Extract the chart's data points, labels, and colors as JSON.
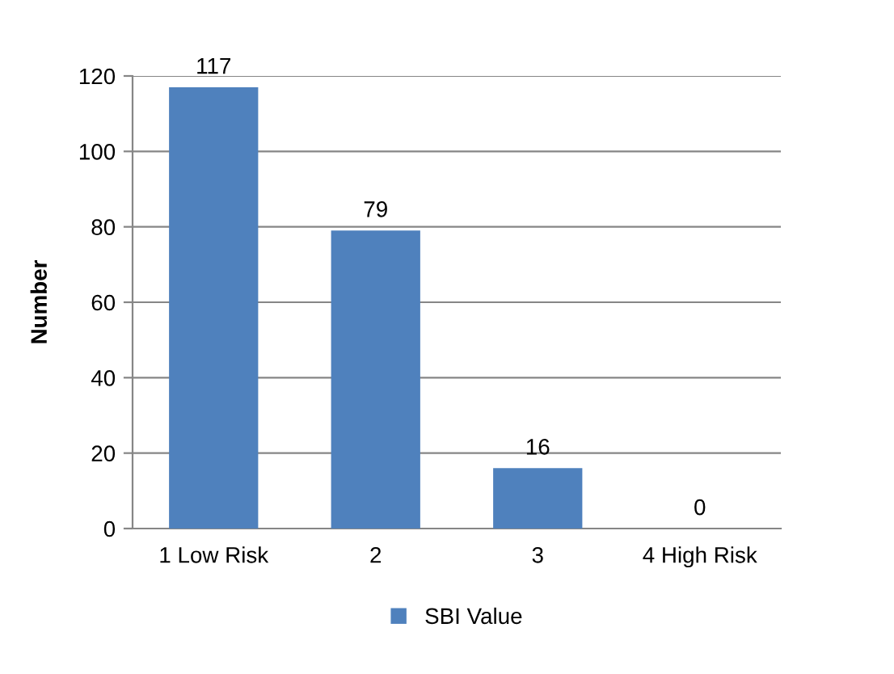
{
  "chart_data": {
    "type": "bar",
    "ylabel": "Number",
    "categories": [
      "1 Low Risk",
      "2",
      "3",
      "4 High Risk"
    ],
    "series": [
      {
        "name": "SBI Value",
        "color": "#4f81bd",
        "values": [
          117,
          79,
          16,
          0
        ]
      }
    ],
    "ylim": [
      0,
      120
    ],
    "yticks": [
      0,
      20,
      40,
      60,
      80,
      100,
      120
    ],
    "grid": "y",
    "legend": "bottom",
    "data_labels": true
  }
}
